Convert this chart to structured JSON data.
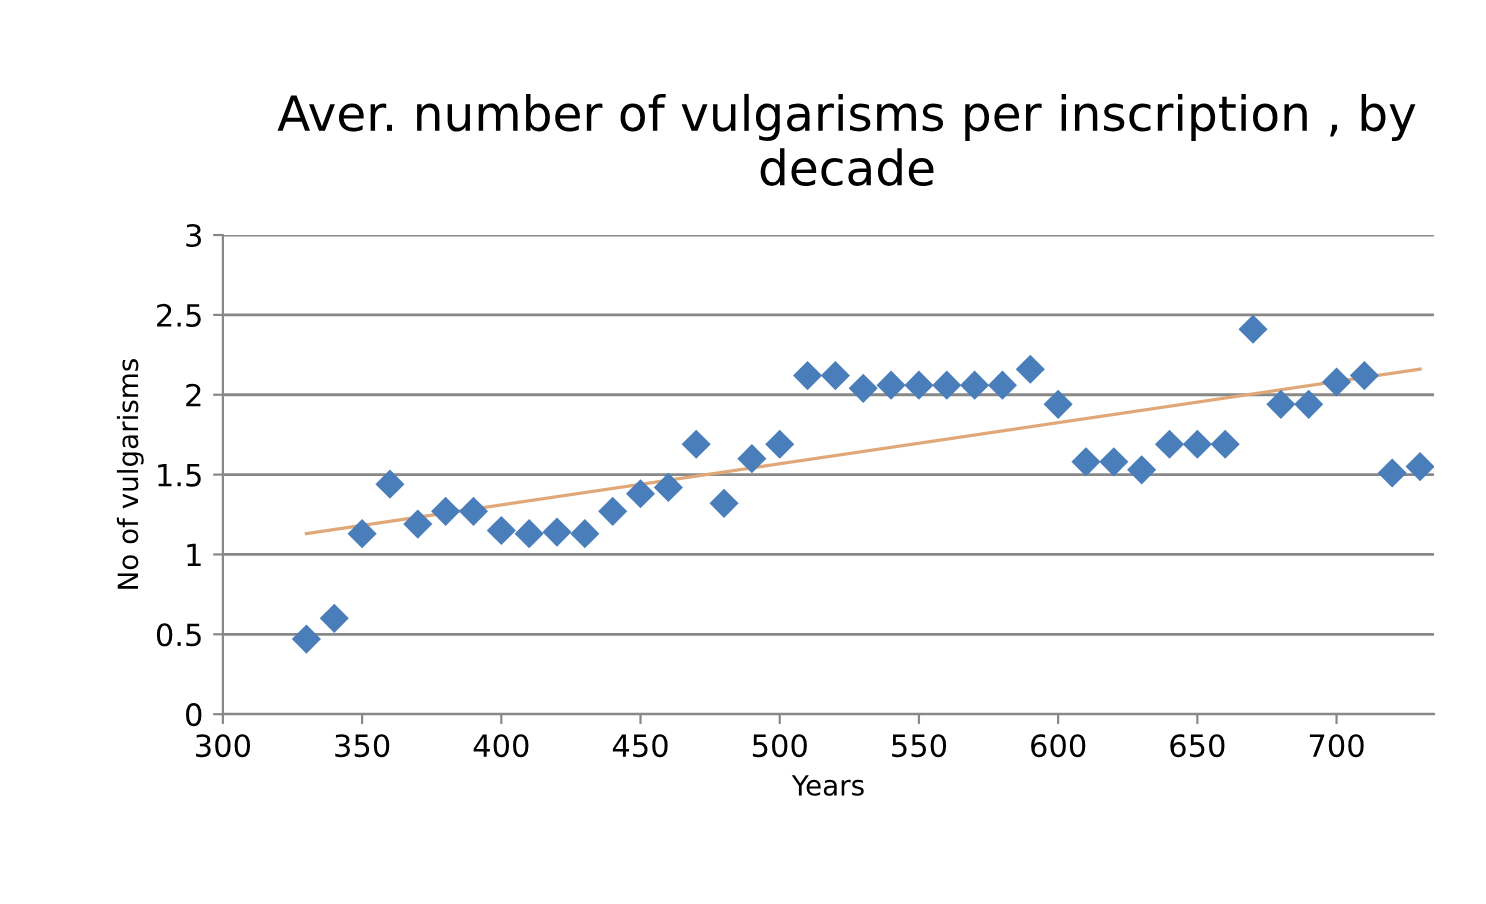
{
  "chart_data": {
    "type": "scatter",
    "title": "Aver. number of vulgarisms per inscription , by decade",
    "xlabel": "Years",
    "ylabel": "No of vulgarisms",
    "xlim": [
      300,
      735
    ],
    "xticks": [
      300,
      350,
      400,
      450,
      500,
      550,
      600,
      650,
      700
    ],
    "ylim": [
      0,
      3
    ],
    "yticks": [
      0,
      0.5,
      1,
      1.5,
      2,
      2.5,
      3
    ],
    "grid": "y",
    "legend": false,
    "series": [
      {
        "color": "#4a7ebb",
        "x": [
          330,
          340,
          350,
          360,
          370,
          380,
          390,
          400,
          410,
          420,
          430,
          440,
          450,
          460,
          470,
          480,
          490,
          500,
          510,
          520,
          530,
          540,
          550,
          560,
          570,
          580,
          590,
          600,
          610,
          620,
          630,
          640,
          650,
          660,
          670,
          680,
          690,
          700,
          710,
          720,
          730
        ],
        "marker": "diamond",
        "values": [
          0.47,
          0.6,
          1.13,
          1.44,
          1.19,
          1.27,
          1.27,
          1.15,
          1.13,
          1.14,
          1.13,
          1.27,
          1.38,
          1.42,
          1.69,
          1.32,
          1.6,
          1.69,
          2.12,
          2.12,
          2.04,
          2.06,
          2.06,
          2.06,
          2.06,
          2.06,
          2.16,
          1.94,
          1.58,
          1.58,
          1.53,
          1.69,
          1.69,
          1.69,
          2.41,
          1.94,
          1.94,
          2.08,
          2.12,
          1.51,
          1.55
        ]
      },
      {
        "type": "line",
        "color": "#e0a878",
        "x": [
          330,
          730
        ],
        "values": [
          1.13,
          2.16
        ]
      }
    ]
  }
}
